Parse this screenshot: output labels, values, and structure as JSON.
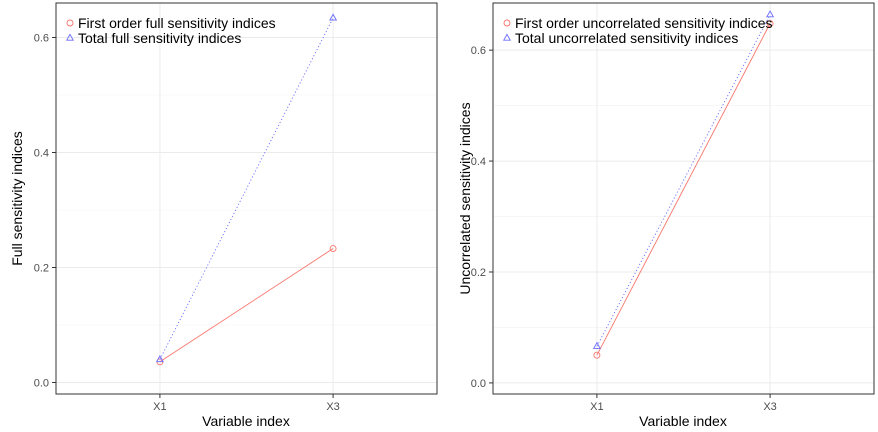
{
  "chart_data": [
    {
      "type": "line",
      "categories": [
        "X1",
        "X3"
      ],
      "xlabel": "Variable index",
      "ylabel": "Full sensitivity indices",
      "ylim": [
        -0.02,
        0.66
      ],
      "yticks": [
        0.0,
        0.2,
        0.4,
        0.6
      ],
      "ytick_labels": [
        "0.0",
        "0.2",
        "0.4",
        "0.6"
      ],
      "grid": true,
      "legend_position": "top-left",
      "series": [
        {
          "name": "First order full sensitivity indices",
          "values": [
            0.036,
            0.233
          ],
          "color": "#f8766d",
          "marker": "circle",
          "line": "solid"
        },
        {
          "name": "Total full sensitivity indices",
          "values": [
            0.04,
            0.634
          ],
          "color": "#6b6bff",
          "marker": "triangle",
          "line": "dotted"
        }
      ]
    },
    {
      "type": "line",
      "categories": [
        "X1",
        "X3"
      ],
      "xlabel": "Variable index",
      "ylabel": "Uncorrelated sensitivity indices",
      "ylim": [
        -0.02,
        0.685
      ],
      "yticks": [
        0.0,
        0.2,
        0.4,
        0.6
      ],
      "ytick_labels": [
        "0.0",
        "0.2",
        "0.4",
        "0.6"
      ],
      "grid": true,
      "legend_position": "top-left",
      "series": [
        {
          "name": "First order uncorrelated sensitivity indices",
          "values": [
            0.05,
            0.648
          ],
          "color": "#f8766d",
          "marker": "circle",
          "line": "solid"
        },
        {
          "name": "Total uncorrelated sensitivity indices",
          "values": [
            0.066,
            0.664
          ],
          "color": "#6b6bff",
          "marker": "triangle",
          "line": "dotted"
        }
      ]
    }
  ]
}
